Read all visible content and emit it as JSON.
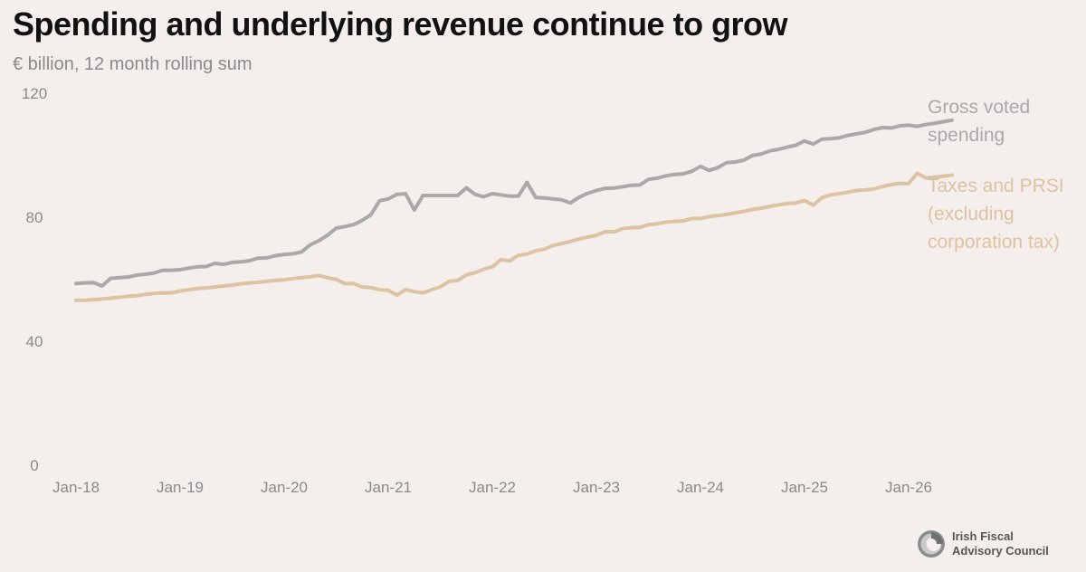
{
  "header": {
    "title": "Spending and underlying revenue continue to grow",
    "subtitle": "€ billion, 12 month rolling sum"
  },
  "logo": {
    "line1": "Irish Fiscal",
    "line2": "Advisory Council",
    "icon": "ifac-logo-icon"
  },
  "colors": {
    "background": "#f4efec",
    "spending": "#a9a9a9",
    "taxes": "#dcc3a1",
    "axis_text": "#8a8a8a"
  },
  "chart_data": {
    "type": "line",
    "title": "Spending and underlying revenue continue to grow",
    "subtitle": "€ billion, 12 month rolling sum",
    "xlabel": "",
    "ylabel": "",
    "ylim": [
      0,
      120
    ],
    "yticks": [
      0,
      40,
      80,
      120
    ],
    "x_start": "Jan-18",
    "x_step": "1 month",
    "xticks": [
      "Jan-18",
      "Jan-19",
      "Jan-20",
      "Jan-21",
      "Jan-22",
      "Jan-23",
      "Jan-24",
      "Jan-25",
      "Jan-26"
    ],
    "grid": false,
    "legend": "right",
    "series": [
      {
        "name": "Gross voted spending",
        "legend_lines": [
          "Gross voted",
          "spending"
        ],
        "values": [
          58.6,
          58.8,
          58.9,
          57.8,
          60.3,
          60.5,
          60.7,
          61.3,
          61.6,
          62.0,
          62.9,
          62.9,
          63.1,
          63.6,
          64.0,
          64.1,
          65.1,
          64.8,
          65.4,
          65.6,
          66.0,
          66.8,
          66.9,
          67.6,
          68.0,
          68.2,
          68.8,
          71.1,
          72.4,
          74.2,
          76.5,
          77.0,
          77.6,
          79.0,
          80.8,
          85.3,
          85.9,
          87.4,
          87.6,
          82.3,
          87.0,
          87.0,
          87.0,
          87.0,
          87.0,
          89.5,
          87.4,
          86.6,
          87.6,
          87.2,
          86.8,
          86.8,
          91.2,
          86.4,
          86.2,
          85.9,
          85.6,
          84.6,
          86.4,
          87.7,
          88.6,
          89.3,
          89.4,
          89.8,
          90.3,
          90.4,
          92.2,
          92.6,
          93.3,
          93.8,
          94.0,
          94.8,
          96.4,
          95.1,
          96.0,
          97.6,
          97.8,
          98.4,
          99.9,
          100.4,
          101.4,
          101.9,
          102.6,
          103.2,
          104.6,
          103.6,
          105.2,
          105.3,
          105.6,
          106.4,
          106.9,
          107.4,
          108.3,
          108.9,
          108.8,
          109.5,
          109.7,
          109.3,
          109.9,
          110.3,
          110.8,
          111.3
        ]
      },
      {
        "name": "Taxes and PRSI (excluding corporation tax)",
        "legend_lines": [
          "Taxes and PRSI",
          "(excluding",
          "corporation tax)"
        ],
        "values": [
          53.2,
          53.2,
          53.4,
          53.6,
          53.9,
          54.2,
          54.5,
          54.7,
          55.1,
          55.4,
          55.6,
          55.6,
          56.2,
          56.6,
          57.0,
          57.2,
          57.5,
          57.8,
          58.1,
          58.5,
          58.8,
          59.0,
          59.3,
          59.6,
          59.8,
          60.2,
          60.5,
          60.8,
          61.2,
          60.5,
          59.9,
          58.6,
          58.6,
          57.5,
          57.3,
          56.6,
          56.4,
          54.9,
          56.6,
          56.0,
          55.6,
          56.6,
          57.5,
          59.3,
          59.6,
          61.4,
          62.1,
          63.2,
          64.0,
          66.3,
          65.9,
          67.7,
          68.1,
          69.2,
          69.7,
          70.9,
          71.5,
          72.2,
          73.0,
          73.6,
          74.2,
          75.3,
          75.3,
          76.3,
          76.6,
          76.7,
          77.6,
          77.9,
          78.4,
          78.7,
          78.8,
          79.6,
          79.6,
          80.2,
          80.5,
          80.9,
          81.4,
          81.9,
          82.5,
          82.9,
          83.5,
          84.0,
          84.4,
          84.6,
          85.4,
          83.9,
          86.3,
          87.2,
          87.6,
          88.1,
          88.6,
          88.8,
          89.1,
          89.9,
          90.5,
          90.9,
          90.9,
          94.2,
          92.6,
          92.9,
          93.2,
          93.6
        ]
      }
    ]
  }
}
